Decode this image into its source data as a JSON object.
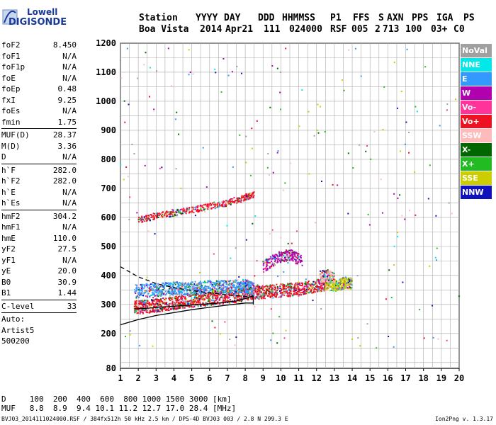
{
  "logo": {
    "line1": "Lowell",
    "line2": "DIGISONDE"
  },
  "header": {
    "labels": [
      "Station",
      "YYYY",
      "DAY",
      "DDD",
      "HHMMSS",
      "P1",
      "FFS",
      "S",
      "AXN",
      "PPS",
      "IGA",
      "PS"
    ],
    "values": [
      "Boa Vista",
      "2014",
      "Apr21",
      "111",
      "024000",
      "RSF",
      "005",
      "2",
      "713",
      "100",
      "03+",
      "C0"
    ]
  },
  "params": [
    {
      "group": [
        {
          "key": "foF2",
          "value": "8.450"
        },
        {
          "key": "foF1",
          "value": "N/A"
        },
        {
          "key": "foF1p",
          "value": "N/A"
        },
        {
          "key": "foE",
          "value": "N/A"
        },
        {
          "key": "foEp",
          "value": "0.48"
        },
        {
          "key": "fxI",
          "value": "9.25"
        },
        {
          "key": "foEs",
          "value": "N/A"
        },
        {
          "key": "fmin",
          "value": "1.75"
        }
      ]
    },
    {
      "group": [
        {
          "key": "MUF(D)",
          "value": "28.37"
        },
        {
          "key": "M(D)",
          "value": "3.36"
        },
        {
          "key": "D",
          "value": "N/A"
        }
      ]
    },
    {
      "group": [
        {
          "key": "h`F",
          "value": "282.0"
        },
        {
          "key": "h`F2",
          "value": "282.0"
        },
        {
          "key": "h`E",
          "value": "N/A"
        },
        {
          "key": "h`Es",
          "value": "N/A"
        }
      ]
    },
    {
      "group": [
        {
          "key": "hmF2",
          "value": "304.2"
        },
        {
          "key": "hmF1",
          "value": "N/A"
        },
        {
          "key": "hmE",
          "value": "110.0"
        },
        {
          "key": "yF2",
          "value": "27.5"
        },
        {
          "key": "yF1",
          "value": "N/A"
        },
        {
          "key": "yE",
          "value": "20.0"
        },
        {
          "key": "B0",
          "value": "30.9"
        },
        {
          "key": "B1",
          "value": "1.44"
        }
      ]
    },
    {
      "group": [
        {
          "key": "C-level",
          "value": "33"
        }
      ]
    },
    {
      "group": [
        {
          "key": "Auto:",
          "value": ""
        },
        {
          "key": "Artist5",
          "value": ""
        },
        {
          "key": "500200",
          "value": ""
        }
      ]
    }
  ],
  "muf_table": {
    "row1_label": "D",
    "row1_values": "100  200  400  600  800 1000 1500 3000 [km]",
    "row2_label": "MUF",
    "row2_values": "8.8  8.9  9.4 10.1 11.2 12.7 17.0 28.4 [MHz]"
  },
  "footer": "BVJ03_2014111024000.RSF / 384fx512h 50 kHz 2.5 km / DPS-4D BVJ03 003 / 2.8 N 299.3 E",
  "version": "Ion2Png v. 1.3.17",
  "legend": [
    {
      "label": "NoVal",
      "color": "#a0a0a0"
    },
    {
      "label": "NNE",
      "color": "#00e8e8"
    },
    {
      "label": "E",
      "color": "#3399ff"
    },
    {
      "label": "W",
      "color": "#b000b0"
    },
    {
      "label": "Vo-",
      "color": "#ff3399"
    },
    {
      "label": "Vo+",
      "color": "#ee1122"
    },
    {
      "label": "SSW",
      "color": "#ffbbbb"
    },
    {
      "label": "X-",
      "color": "#006600"
    },
    {
      "label": "X+",
      "color": "#22bb22"
    },
    {
      "label": "SSE",
      "color": "#cccc00"
    },
    {
      "label": "NNW",
      "color": "#1111bb"
    }
  ],
  "chart_data": {
    "type": "scatter",
    "title": "",
    "xlabel": "",
    "ylabel": "",
    "xlim": [
      1,
      20
    ],
    "ylim": [
      80,
      1200
    ],
    "x_ticks": [
      1,
      2,
      3,
      4,
      5,
      6,
      7,
      8,
      9,
      10,
      11,
      12,
      13,
      14,
      15,
      16,
      17,
      18,
      19,
      20
    ],
    "x_tick_labels": [
      "1",
      "2",
      "3",
      "4",
      "5",
      "6",
      "7",
      "8",
      "9",
      "10",
      "11",
      "12",
      "13",
      "14",
      "15",
      "16",
      "17",
      "18",
      "19",
      "20"
    ],
    "y_ticks": [
      80,
      100,
      200,
      300,
      400,
      500,
      600,
      700,
      800,
      900,
      1000,
      1100,
      1200
    ],
    "y_tick_labels": [
      "80",
      "",
      "200",
      "300",
      "400",
      "500",
      "600",
      "700",
      "800",
      "900",
      "1000",
      "1100",
      "1200"
    ],
    "grid": true,
    "legend_position": "right",
    "series": [
      {
        "name": "Vo+",
        "kind": "trace",
        "x": [
          1.8,
          2.5,
          3.5,
          4.5,
          5.5,
          6.5,
          7.5,
          8.5,
          9.5,
          10.5,
          11.5,
          12.5
        ],
        "y": [
          290,
          292,
          300,
          310,
          315,
          322,
          330,
          340,
          345,
          350,
          358,
          370
        ]
      },
      {
        "name": "E",
        "kind": "trace",
        "x": [
          1.8,
          3.0,
          4.0,
          5.0,
          6.0,
          7.0,
          8.0,
          8.5
        ],
        "y": [
          345,
          350,
          355,
          355,
          360,
          360,
          365,
          350
        ]
      },
      {
        "name": "Vo+",
        "kind": "echo",
        "x": [
          2.0,
          3.0,
          4.0,
          5.0,
          6.0,
          7.0,
          8.0,
          8.5
        ],
        "y": [
          590,
          605,
          615,
          625,
          638,
          650,
          668,
          680
        ]
      },
      {
        "name": "SSE",
        "kind": "cluster",
        "x": [
          12.5,
          12.8,
          13.2,
          13.6,
          14.0
        ],
        "y": [
          370,
          368,
          365,
          375,
          372
        ]
      },
      {
        "name": "W",
        "kind": "cluster",
        "x": [
          9.0,
          9.8,
          10.5,
          11.2
        ],
        "y": [
          430,
          460,
          470,
          450
        ]
      },
      {
        "name": "SSW",
        "kind": "cluster",
        "x": [
          12.2,
          12.6,
          13.0
        ],
        "y": [
          395,
          400,
          390
        ]
      }
    ],
    "curves": [
      {
        "name": "profile-solid",
        "x": [
          1.0,
          2.0,
          3.0,
          4.0,
          5.0,
          6.0,
          7.0,
          8.0,
          8.45
        ],
        "y": [
          230,
          248,
          262,
          272,
          282,
          290,
          298,
          305,
          305
        ]
      },
      {
        "name": "profile-dashed",
        "x": [
          1.0,
          2.0,
          3.0,
          4.0,
          5.0,
          6.0,
          7.0,
          8.0,
          8.45
        ],
        "y": [
          430,
          395,
          372,
          358,
          348,
          340,
          333,
          328,
          326
        ]
      },
      {
        "name": "o-trace-fit",
        "x": [
          1.75,
          2.5,
          3.5,
          4.5,
          5.5,
          6.5,
          7.5,
          8.0,
          8.45
        ],
        "y": [
          285,
          287,
          292,
          296,
          300,
          305,
          312,
          320,
          330
        ]
      }
    ]
  }
}
